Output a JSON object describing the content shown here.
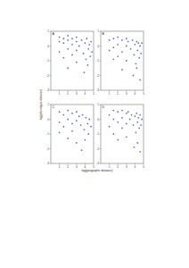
{
  "chart_data": [
    {
      "type": "scatter",
      "title": "A",
      "y_label": "log(phenotypic distance)",
      "color": "#2233cc",
      "xlim": [
        0,
        5
      ],
      "xticks": [
        1,
        2,
        3,
        4,
        5
      ],
      "ylim": [
        -3,
        1
      ],
      "yticks": [
        -3,
        -2,
        -1,
        0,
        1
      ],
      "x": [
        1,
        1,
        1,
        1.5,
        1.5,
        1.5,
        2,
        2,
        2,
        2,
        2.5,
        2.5,
        2.5,
        3,
        3,
        3,
        3,
        3.3,
        3.6,
        3.8,
        4,
        4.1,
        4.2,
        4.4,
        4.5,
        4.6,
        4.7,
        4.8,
        3.9,
        4.3
      ],
      "values": [
        0.3,
        -0.4,
        0.6,
        0.2,
        -0.8,
        0.5,
        0.4,
        -0.2,
        -1.5,
        0.7,
        0.1,
        -0.6,
        0.5,
        0.3,
        -0.3,
        -1.1,
        0.6,
        0.0,
        0.4,
        -0.5,
        0.2,
        -0.9,
        0.5,
        -0.2,
        0.1,
        -0.7,
        0.3,
        -0.4,
        -1.8,
        -1.3
      ]
    },
    {
      "type": "scatter",
      "title": "B",
      "color": "#2233cc",
      "xlim": [
        0,
        5
      ],
      "xticks": [
        1,
        2,
        3,
        4,
        5
      ],
      "ylim": [
        -3,
        1
      ],
      "yticks": [
        -3,
        -2,
        -1,
        0,
        1
      ],
      "x": [
        1,
        1,
        1.5,
        1.5,
        1.5,
        2,
        2,
        2,
        2.5,
        2.5,
        2.5,
        3,
        3,
        3,
        3.2,
        3.5,
        3.7,
        3.9,
        4,
        4.1,
        4.2,
        4.3,
        4.4,
        4.5,
        4.6,
        4.7,
        4.8,
        3.8,
        4.2,
        4.6
      ],
      "values": [
        0.4,
        -0.3,
        0.5,
        -0.1,
        -0.9,
        0.6,
        0.1,
        -0.7,
        0.4,
        -0.4,
        -1.6,
        0.5,
        0.0,
        -1.0,
        0.3,
        -0.2,
        0.4,
        -0.6,
        0.1,
        -1.2,
        0.3,
        -0.3,
        0.2,
        -0.8,
        0.0,
        -0.5,
        0.2,
        -2.0,
        -1.5,
        -2.3
      ]
    },
    {
      "type": "scatter",
      "title": "C",
      "x_label": "log(geographic distance)",
      "color": "#2233cc",
      "xlim": [
        0,
        5
      ],
      "xticks": [
        1,
        2,
        3,
        4,
        5
      ],
      "ylim": [
        -3,
        1
      ],
      "yticks": [
        -3,
        -2,
        -1,
        0,
        1
      ],
      "x": [
        1,
        1,
        1,
        1.5,
        1.5,
        2,
        2,
        2,
        2.5,
        2.5,
        2.5,
        3,
        3,
        3,
        3.3,
        3.5,
        3.7,
        3.9,
        4.1,
        4.3,
        4.5,
        4.7,
        3.6,
        4.0,
        4.4
      ],
      "values": [
        0.5,
        -0.2,
        -0.9,
        0.3,
        -0.5,
        0.6,
        0.0,
        -1.3,
        0.4,
        -0.3,
        -0.8,
        0.5,
        -0.1,
        -1.6,
        0.2,
        -0.4,
        0.3,
        -0.7,
        0.1,
        -0.3,
        0.0,
        -0.5,
        -2.1,
        -1.4,
        -1.0
      ]
    },
    {
      "type": "scatter",
      "title": "D",
      "color": "#2233cc",
      "xlim": [
        0,
        5
      ],
      "xticks": [
        1,
        2,
        3,
        4,
        5
      ],
      "ylim": [
        -3,
        1
      ],
      "yticks": [
        -3,
        -2,
        -1,
        0,
        1
      ],
      "x": [
        1,
        1,
        1.5,
        1.5,
        1.5,
        2,
        2,
        2,
        2.5,
        2.5,
        2.5,
        3,
        3,
        3,
        3.2,
        3.4,
        3.6,
        3.8,
        4,
        4.1,
        4.2,
        4.3,
        4.4,
        4.5,
        4.6,
        4.7,
        4.8,
        3.9,
        4.3,
        4.6
      ],
      "values": [
        0.3,
        -0.5,
        0.6,
        0.0,
        -1.0,
        0.5,
        -0.2,
        -1.4,
        0.6,
        0.1,
        -0.6,
        0.4,
        -0.3,
        -1.2,
        0.5,
        0.0,
        0.3,
        -0.4,
        0.2,
        -0.9,
        0.4,
        -0.2,
        0.1,
        -0.6,
        0.3,
        -0.4,
        0.0,
        -1.9,
        -1.6,
        -2.2
      ]
    }
  ]
}
